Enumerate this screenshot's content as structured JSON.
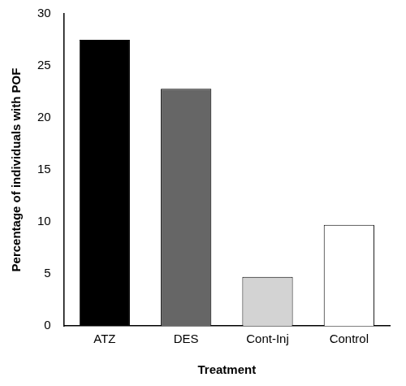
{
  "chart_data": {
    "type": "bar",
    "x_label": "Treatment",
    "y_label": "Percentage of individuals with POF",
    "categories": [
      "ATZ",
      "DES",
      "Cont-Inj",
      "Control"
    ],
    "values": [
      27.5,
      22.8,
      4.7,
      9.7
    ],
    "colors": [
      "#000000",
      "#666666",
      "#d3d3d3",
      "#ffffff"
    ],
    "ylim": [
      0,
      30
    ],
    "yticks": [
      0,
      5,
      10,
      15,
      20,
      25,
      30
    ],
    "grid": false
  }
}
